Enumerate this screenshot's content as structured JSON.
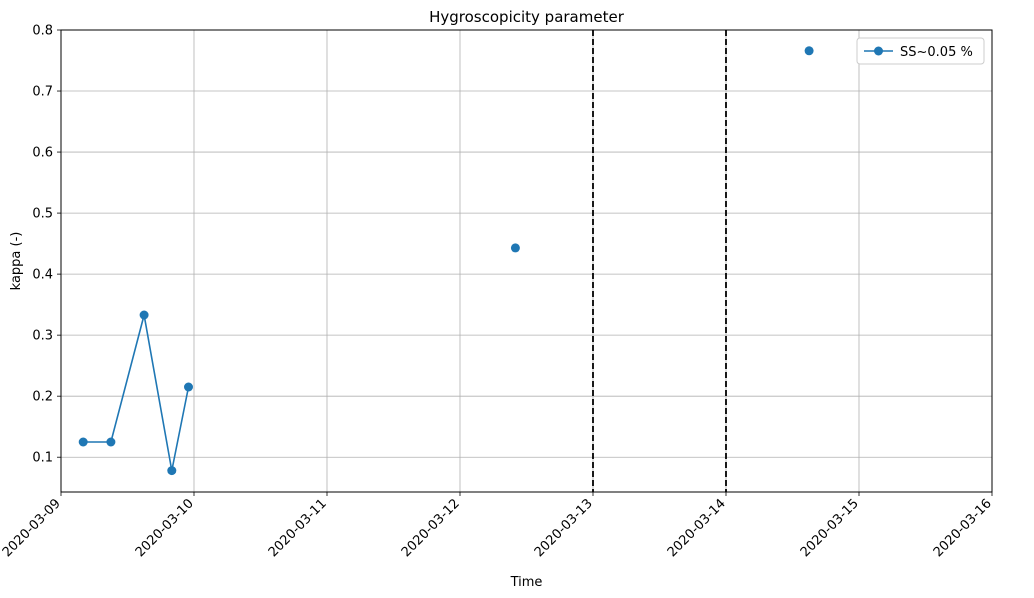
{
  "chart_data": {
    "type": "line",
    "title": "Hygroscopicity parameter",
    "xlabel": "Time",
    "ylabel": "kappa (-)",
    "xlim": [
      "2020-03-09",
      "2020-03-16"
    ],
    "ylim": [
      0.043,
      0.8
    ],
    "xticks": [
      "2020-03-09",
      "2020-03-10",
      "2020-03-11",
      "2020-03-12",
      "2020-03-13",
      "2020-03-14",
      "2020-03-15",
      "2020-03-16"
    ],
    "yticks": [
      0.1,
      0.2,
      0.3,
      0.4,
      0.5,
      0.6,
      0.7,
      0.8
    ],
    "ytick_labels": [
      "0.1",
      "0.2",
      "0.3",
      "0.4",
      "0.5",
      "0.6",
      "0.7",
      "0.8"
    ],
    "grid": true,
    "legend_position": "top-right",
    "series": [
      {
        "name": "SS~0.05 %",
        "color": "#1f77b4",
        "segments": [
          {
            "x": [
              "2020-03-09 04:00",
              "2020-03-09 09:00",
              "2020-03-09 15:00",
              "2020-03-09 20:00",
              "2020-03-09 23:00"
            ],
            "y": [
              0.125,
              0.125,
              0.333,
              0.078,
              0.215
            ]
          },
          {
            "x": [
              "2020-03-12 10:00"
            ],
            "y": [
              0.443
            ]
          },
          {
            "x": [
              "2020-03-14 15:00"
            ],
            "y": [
              0.766
            ]
          }
        ]
      }
    ],
    "vlines": [
      "2020-03-13",
      "2020-03-14"
    ]
  }
}
